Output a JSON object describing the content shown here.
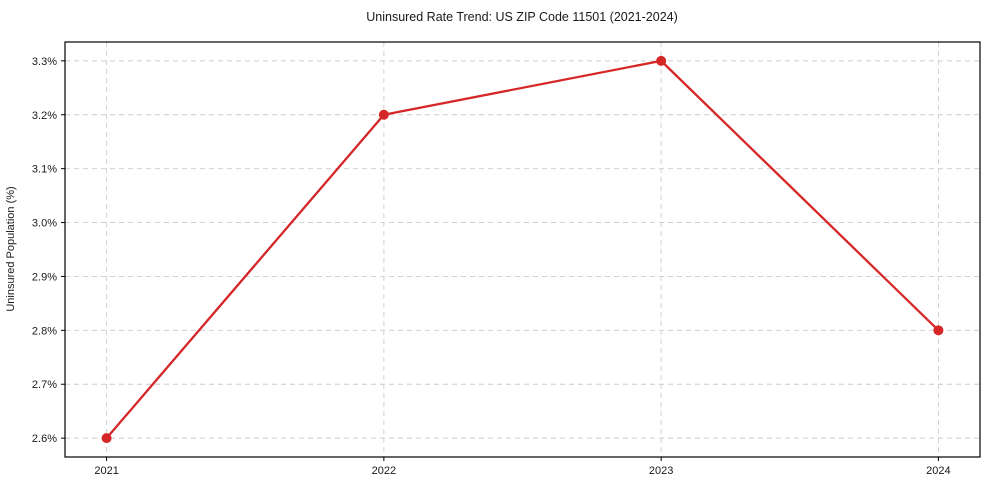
{
  "chart_data": {
    "type": "line",
    "title": "Uninsured Rate Trend: US ZIP Code 11501 (2021-2024)",
    "ylabel": "Uninsured Population (%)",
    "xlabel": "",
    "x": [
      2021,
      2022,
      2023,
      2024
    ],
    "values": [
      2.6,
      3.2,
      3.3,
      2.8
    ],
    "xtick_labels": [
      "2021",
      "2022",
      "2023",
      "2024"
    ],
    "yticks": [
      2.6,
      2.7,
      2.8,
      2.9,
      3.0,
      3.1,
      3.2,
      3.3
    ],
    "ytick_labels": [
      "2.6%",
      "2.7%",
      "2.8%",
      "2.9%",
      "3.0%",
      "3.1%",
      "3.2%",
      "3.3%"
    ],
    "xlim": [
      2020.85,
      2024.15
    ],
    "ylim": [
      2.565,
      3.335
    ],
    "grid": true,
    "legend": "none",
    "line_color": "#d62728",
    "grid_color": "#cccccc",
    "spine_color": "#000000",
    "background_color": "#ffffff"
  }
}
